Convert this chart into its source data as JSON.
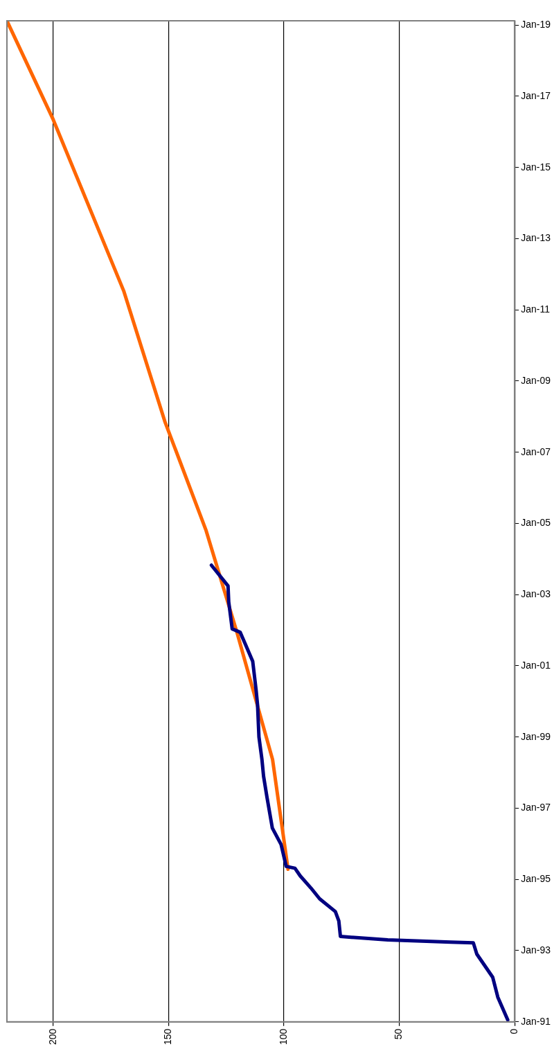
{
  "chart_data": {
    "type": "line",
    "orientation": "horizontal",
    "grid": "x",
    "marker": "none",
    "line_style": "solid",
    "xlim": [
      220,
      0
    ],
    "xticks": [
      0,
      50,
      100,
      150,
      200
    ],
    "ylim": [
      "1991-01-01",
      "2019-02-15"
    ],
    "yticks": [
      {
        "value": "1991-01-01",
        "label": "Jan-91"
      },
      {
        "value": "1993-01-01",
        "label": "Jan-93"
      },
      {
        "value": "1995-01-01",
        "label": "Jan-95"
      },
      {
        "value": "1997-01-01",
        "label": "Jan-97"
      },
      {
        "value": "1999-01-01",
        "label": "Jan-99"
      },
      {
        "value": "2001-01-01",
        "label": "Jan-01"
      },
      {
        "value": "2003-01-01",
        "label": "Jan-03"
      },
      {
        "value": "2005-01-01",
        "label": "Jan-05"
      },
      {
        "value": "2007-01-01",
        "label": "Jan-07"
      },
      {
        "value": "2009-01-01",
        "label": "Jan-09"
      },
      {
        "value": "2011-01-01",
        "label": "Jan-11"
      },
      {
        "value": "2013-01-01",
        "label": "Jan-13"
      },
      {
        "value": "2015-01-01",
        "label": "Jan-15"
      },
      {
        "value": "2017-01-01",
        "label": "Jan-17"
      },
      {
        "value": "2019-01-01",
        "label": "Jan-19"
      }
    ],
    "series": [
      {
        "color": "#000080",
        "values": [
          3,
          7.3,
          9.5,
          16.4,
          17.9,
          27.7,
          55,
          75.5,
          76.2,
          77.7,
          84.5,
          88.3,
          92.9,
          95.2,
          99,
          101.2,
          105,
          107.3,
          108.8,
          109.5,
          110.8,
          111.4,
          112,
          113.5,
          116.5,
          118.9,
          122.4,
          123.9,
          124.2,
          131.4
        ],
        "x": [
          "1991-01-20",
          "1991-09-10",
          "1992-04-01",
          "1992-11-25",
          "1993-03-20",
          "1993-03-28",
          "1993-04-20",
          "1993-05-25",
          "1993-11-01",
          "1994-02-05",
          "1994-06-15",
          "1994-10-05",
          "1995-02-05",
          "1995-04-25",
          "1995-05-15",
          "1995-12-25",
          "1996-06-10",
          "1997-04-20",
          "1997-11-25",
          "1998-05-15",
          "1999-01-01",
          "1999-11-25",
          "2000-04-20",
          "2001-02-15",
          "2001-07-30",
          "2001-12-10",
          "2002-01-15",
          "2002-10-20",
          "2003-04-01",
          "2003-10-30"
        ]
      },
      {
        "color": "#ff6600",
        "values": [
          98.2,
          104.9,
          120.4,
          133.7,
          151.6,
          169.4,
          200,
          220
        ],
        "x": [
          "1995-04-15",
          "1998-05-15",
          "2001-12-15",
          "2004-10-20",
          "2007-11-15",
          "2011-07-15",
          "2016-05-10",
          "2019-02-15"
        ]
      }
    ]
  }
}
